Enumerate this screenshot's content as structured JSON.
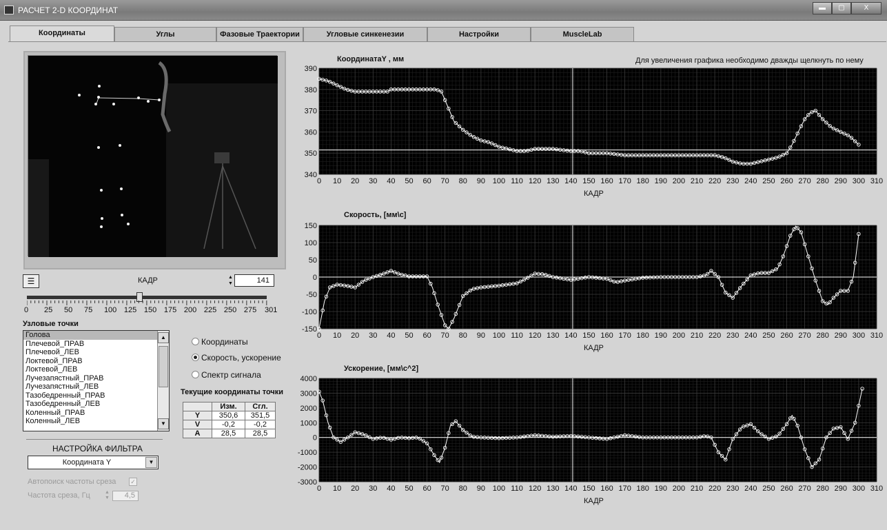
{
  "window": {
    "title": "РАСЧЕТ 2-D КООРДИНАТ",
    "buttons": [
      "▬",
      "▢",
      "X"
    ]
  },
  "tabs": [
    "Координаты",
    "Углы",
    "Фазовые Траектории",
    "Угловые синкенезии",
    "Настройки",
    "MuscleLab"
  ],
  "active_tab": 0,
  "frame": {
    "label": "КАДР",
    "value": "141"
  },
  "slider": {
    "labels": [
      "0",
      "25",
      "50",
      "75",
      "100",
      "125",
      "150",
      "175",
      "200",
      "225",
      "250",
      "275",
      "301"
    ],
    "position": 141,
    "max": 301
  },
  "nodes": {
    "title": "Узловые точки",
    "items": [
      "Голова",
      "Плечевой_ПРАВ",
      "Плечевой_ЛЕВ",
      "Локтевой_ПРАВ",
      "Локтевой_ЛЕВ",
      "Лучезапястный_ПРАВ",
      "Лучезапястный_ЛЕВ",
      "Тазобедренный_ПРАВ",
      "Тазобедренный_ЛЕВ",
      "Коленный_ПРАВ",
      "Коленный_ЛЕВ"
    ],
    "selected": 0
  },
  "modes": {
    "options": [
      "Координаты",
      "Скорость, ускорение",
      "Спектр сигнала"
    ],
    "selected": 1
  },
  "current_coords": {
    "title": "Текущие координаты точки",
    "headers": [
      "",
      "Изм.",
      "Сгл."
    ],
    "rows": [
      [
        "Y",
        "350,6",
        "351,5"
      ],
      [
        "V",
        "-0,2",
        "-0,2"
      ],
      [
        "A",
        "28,5",
        "28,5"
      ]
    ]
  },
  "filter": {
    "title": "НАСТРОЙКА ФИЛЬТРА",
    "combo_value": "Координата Y",
    "autosearch_label": "Автопоиск частоты среза",
    "autosearch_checked": true,
    "freq_label": "Частота среза, Гц",
    "freq_value": "4,5"
  },
  "hint": "Для увеличения графика необходимо дважды щелкнуть по нему",
  "colors": {
    "plot_bg": "#000000",
    "grid": "#3a3a3a",
    "trace": "#ffffff",
    "panel": "#d4d4d4"
  },
  "chart_data": [
    {
      "type": "line",
      "title": "КоординатаY , мм",
      "xlabel": "КАДР",
      "ylabel": "",
      "xlim": [
        0,
        310
      ],
      "ylim": [
        340,
        390
      ],
      "yticks": [
        340,
        350,
        360,
        370,
        380,
        390
      ],
      "xticks": [
        0,
        10,
        20,
        30,
        40,
        50,
        60,
        70,
        80,
        90,
        100,
        110,
        120,
        130,
        140,
        150,
        160,
        170,
        180,
        190,
        200,
        210,
        220,
        230,
        240,
        250,
        260,
        270,
        280,
        290,
        300,
        310
      ],
      "cursor_x": 141,
      "cursor_y": 351.5,
      "series": [
        {
          "x": [
            0,
            5,
            10,
            15,
            20,
            30,
            38,
            40,
            50,
            60,
            65,
            68,
            72,
            75,
            80,
            85,
            90,
            95,
            100,
            105,
            110,
            115,
            120,
            130,
            140,
            145,
            150,
            160,
            170,
            180,
            190,
            200,
            210,
            220,
            225,
            230,
            235,
            240,
            245,
            250,
            255,
            260,
            263,
            267,
            270,
            273,
            276,
            280,
            285,
            290,
            295,
            300
          ],
          "y": [
            385,
            384,
            382,
            380,
            379,
            379,
            379,
            380,
            380,
            380,
            380,
            379,
            371,
            365,
            361,
            358,
            356,
            355,
            353,
            352,
            351,
            351,
            352,
            352,
            351,
            351,
            350,
            350,
            349,
            349,
            349,
            349,
            349,
            349,
            348,
            346,
            345,
            345,
            346,
            347,
            348,
            350,
            354,
            361,
            366,
            369,
            370,
            366,
            362,
            360,
            358,
            354
          ]
        }
      ]
    },
    {
      "type": "line",
      "title": "Скорость, [мм\\с]",
      "xlabel": "КАДР",
      "ylabel": "",
      "xlim": [
        0,
        310
      ],
      "ylim": [
        -150,
        150
      ],
      "yticks": [
        -150,
        -100,
        -50,
        0,
        50,
        100,
        150
      ],
      "xticks": [
        0,
        10,
        20,
        30,
        40,
        50,
        60,
        70,
        80,
        90,
        100,
        110,
        120,
        130,
        140,
        150,
        160,
        170,
        180,
        190,
        200,
        210,
        220,
        230,
        240,
        250,
        260,
        270,
        280,
        290,
        300,
        310
      ],
      "cursor_x": 141,
      "cursor_y": 0,
      "series": [
        {
          "x": [
            0,
            3,
            6,
            10,
            15,
            20,
            25,
            30,
            35,
            40,
            45,
            50,
            55,
            60,
            63,
            66,
            70,
            72,
            75,
            80,
            85,
            90,
            100,
            110,
            115,
            120,
            125,
            130,
            140,
            150,
            160,
            165,
            170,
            180,
            190,
            200,
            210,
            215,
            218,
            222,
            226,
            230,
            235,
            240,
            245,
            250,
            255,
            258,
            262,
            265,
            268,
            272,
            276,
            280,
            283,
            286,
            290,
            294,
            297,
            300
          ],
          "y": [
            -150,
            -70,
            -30,
            -22,
            -25,
            -30,
            -10,
            0,
            8,
            18,
            8,
            2,
            2,
            2,
            -30,
            -80,
            -140,
            -150,
            -120,
            -55,
            -35,
            -30,
            -25,
            -18,
            -5,
            10,
            8,
            0,
            -8,
            0,
            -5,
            -15,
            -10,
            -2,
            0,
            0,
            0,
            5,
            18,
            0,
            -45,
            -60,
            -25,
            5,
            12,
            12,
            25,
            60,
            120,
            148,
            130,
            60,
            -10,
            -70,
            -80,
            -60,
            -40,
            -40,
            0,
            125
          ]
        }
      ]
    },
    {
      "type": "line",
      "title": "Ускорение, [мм\\с^2]",
      "xlabel": "КАДР",
      "ylabel": "",
      "xlim": [
        0,
        310
      ],
      "ylim": [
        -3000,
        4000
      ],
      "yticks": [
        -3000,
        -2000,
        -1000,
        0,
        1000,
        2000,
        3000,
        4000
      ],
      "xticks": [
        0,
        10,
        20,
        30,
        40,
        50,
        60,
        70,
        80,
        90,
        100,
        110,
        120,
        130,
        140,
        150,
        160,
        170,
        180,
        190,
        200,
        210,
        220,
        230,
        240,
        250,
        260,
        270,
        280,
        290,
        300,
        310
      ],
      "cursor_x": 141,
      "cursor_y": 0,
      "series": [
        {
          "x": [
            0,
            2,
            5,
            8,
            12,
            16,
            20,
            25,
            30,
            35,
            40,
            45,
            50,
            55,
            60,
            64,
            67,
            70,
            73,
            76,
            80,
            85,
            90,
            100,
            110,
            120,
            130,
            140,
            150,
            160,
            170,
            180,
            190,
            200,
            210,
            215,
            218,
            222,
            226,
            230,
            235,
            240,
            245,
            250,
            255,
            260,
            263,
            266,
            270,
            274,
            278,
            282,
            286,
            290,
            294,
            298,
            302
          ],
          "y": [
            3100,
            2500,
            1000,
            0,
            -300,
            0,
            350,
            200,
            -100,
            0,
            -150,
            0,
            -50,
            0,
            -400,
            -1200,
            -1700,
            -700,
            800,
            1100,
            500,
            50,
            0,
            -50,
            0,
            150,
            50,
            100,
            0,
            -100,
            150,
            0,
            0,
            0,
            0,
            100,
            0,
            -1000,
            -1500,
            -100,
            700,
            900,
            300,
            -100,
            100,
            900,
            1500,
            800,
            -800,
            -2000,
            -1500,
            0,
            600,
            700,
            -100,
            1000,
            3300
          ]
        }
      ]
    }
  ]
}
